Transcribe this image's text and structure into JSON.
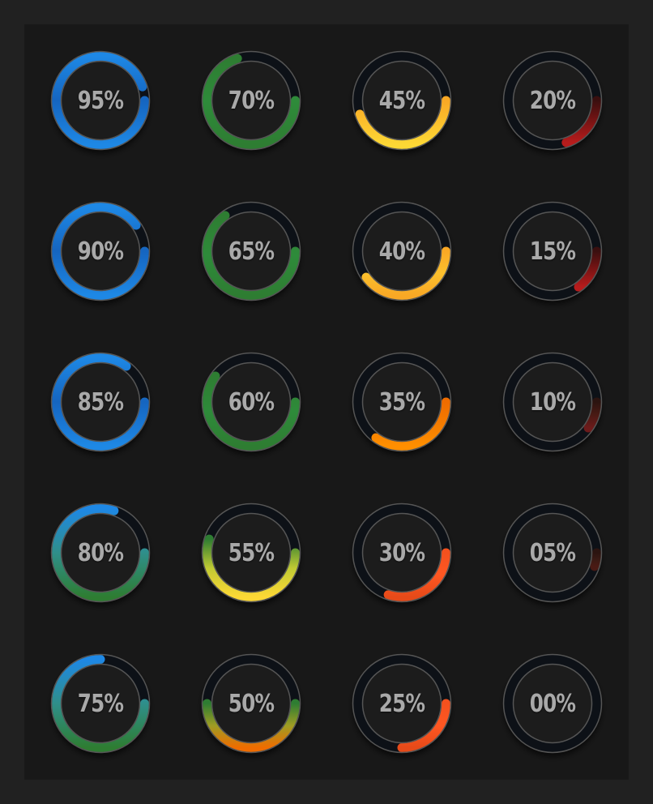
{
  "gauges": [
    [
      {
        "label": "95%",
        "value": 0.95,
        "colors": [
          "#1e88e5",
          "#1565c0",
          "#1e88e5"
        ]
      },
      {
        "label": "70%",
        "value": 0.7,
        "colors": [
          "#2e7d32",
          "#2e8b3a",
          "#2e7d32"
        ]
      },
      {
        "label": "45%",
        "value": 0.45,
        "colors": [
          "#f9a825",
          "#fbc02d",
          "#fdd835"
        ]
      },
      {
        "label": "20%",
        "value": 0.2,
        "colors": [
          "#3a0f0f",
          "#7a1414",
          "#b71c1c"
        ]
      }
    ],
    [
      {
        "label": "90%",
        "value": 0.9,
        "colors": [
          "#1e88e5",
          "#1565c0",
          "#1e88e5"
        ]
      },
      {
        "label": "65%",
        "value": 0.65,
        "colors": [
          "#2e7d32",
          "#2e8b3a",
          "#2e7d32"
        ]
      },
      {
        "label": "40%",
        "value": 0.4,
        "colors": [
          "#f9a825",
          "#fbc02d",
          "#f9a825"
        ]
      },
      {
        "label": "15%",
        "value": 0.15,
        "colors": [
          "#3a0f0f",
          "#7a1414",
          "#b71c1c"
        ]
      }
    ],
    [
      {
        "label": "85%",
        "value": 0.85,
        "colors": [
          "#1e88e5",
          "#1565c0",
          "#1e88e5"
        ]
      },
      {
        "label": "60%",
        "value": 0.6,
        "colors": [
          "#2e7d32",
          "#2e8b3a",
          "#2e7d32"
        ]
      },
      {
        "label": "35%",
        "value": 0.35,
        "colors": [
          "#ef6c00",
          "#f57c00",
          "#ff8f00"
        ]
      },
      {
        "label": "10%",
        "value": 0.1,
        "colors": [
          "#2b1410",
          "#4a1a14",
          "#6d1b1b"
        ]
      }
    ],
    [
      {
        "label": "80%",
        "value": 0.8,
        "colors": [
          "#1e88e5",
          "#2f8f8a",
          "#2e7d32"
        ]
      },
      {
        "label": "55%",
        "value": 0.55,
        "colors": [
          "#2e7d32",
          "#c0ca33",
          "#fdd835"
        ]
      },
      {
        "label": "30%",
        "value": 0.3,
        "colors": [
          "#f4511e",
          "#ff5722",
          "#e64a19"
        ]
      },
      {
        "label": "05%",
        "value": 0.05,
        "colors": [
          "#2b1410",
          "#3a1a14",
          "#4a1a14"
        ]
      }
    ],
    [
      {
        "label": "75%",
        "value": 0.75,
        "colors": [
          "#1e88e5",
          "#2f8f8a",
          "#2e7d32"
        ]
      },
      {
        "label": "50%",
        "value": 0.5,
        "colors": [
          "#2e7d32",
          "#9e9d24",
          "#ef6c00"
        ]
      },
      {
        "label": "25%",
        "value": 0.25,
        "colors": [
          "#f4511e",
          "#ff5722",
          "#e64a19"
        ]
      },
      {
        "label": "00%",
        "value": 0.0,
        "colors": [
          "#2b1410",
          "#2b1410",
          "#2b1410"
        ]
      }
    ]
  ],
  "track_color": "#0d1117",
  "panel_color": "#181818",
  "page_color": "#212121",
  "text_color": "#a9a9a9"
}
